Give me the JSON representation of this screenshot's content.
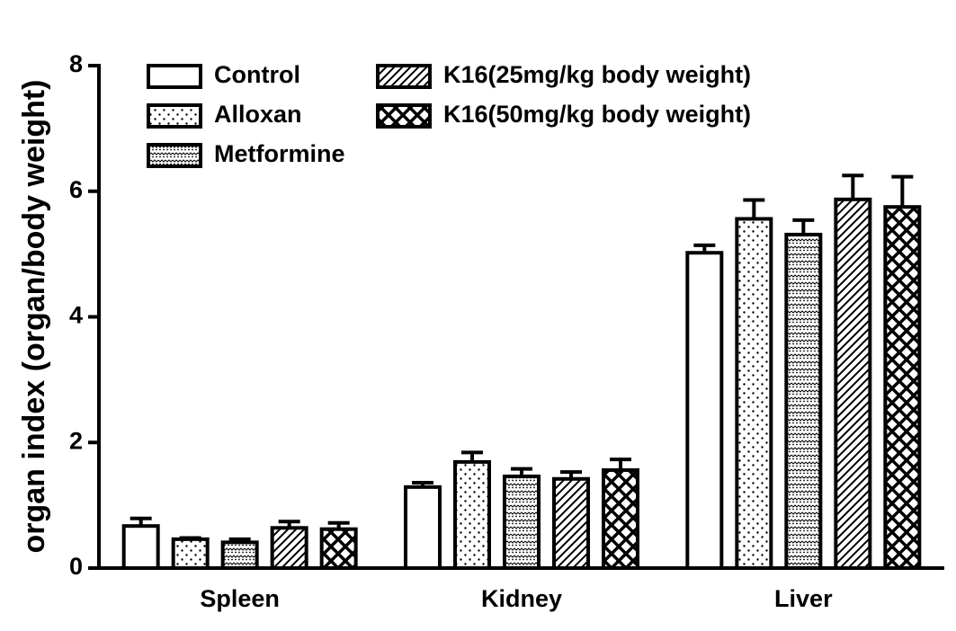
{
  "chart_data": {
    "type": "bar",
    "y_label": "organ index (organ/body weight)",
    "categories": [
      "Spleen",
      "Kidney",
      "Liver"
    ],
    "series": [
      {
        "name": "Control",
        "color": "#000000",
        "pattern": "none",
        "values": [
          0.67,
          1.29,
          5.02
        ],
        "errors": [
          0.12,
          0.07,
          0.12
        ]
      },
      {
        "name": "Alloxan",
        "color": "#000000",
        "pattern": "dots",
        "values": [
          0.46,
          1.69,
          5.56
        ],
        "errors": [
          0.02,
          0.15,
          0.3
        ]
      },
      {
        "name": "Metformine",
        "color": "#000000",
        "pattern": "dense-dots",
        "values": [
          0.41,
          1.46,
          5.31
        ],
        "errors": [
          0.05,
          0.12,
          0.23
        ]
      },
      {
        "name": "K16(25mg/kg body weight)",
        "color": "#000000",
        "pattern": "diagonal",
        "values": [
          0.64,
          1.42,
          5.87
        ],
        "errors": [
          0.1,
          0.11,
          0.38
        ]
      },
      {
        "name": "K16(50mg/kg body weight)",
        "color": "#000000",
        "pattern": "crosshatch",
        "values": [
          0.62,
          1.56,
          5.75
        ],
        "errors": [
          0.1,
          0.17,
          0.48
        ]
      }
    ],
    "ylim": [
      0,
      8
    ],
    "yticks": [
      0,
      2,
      4,
      6,
      8
    ],
    "grid": false
  }
}
